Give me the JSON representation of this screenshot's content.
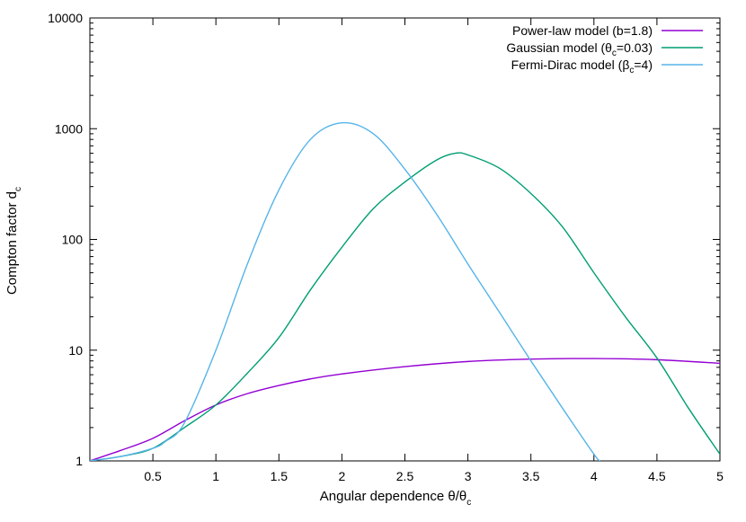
{
  "chart_data": {
    "type": "line",
    "xlabel_main": "Angular dependence  θ/θ",
    "xlabel_sub": "c",
    "ylabel_main": "Compton factor d",
    "ylabel_sub": "c",
    "xlim": [
      0,
      5
    ],
    "ylim": [
      1,
      10000
    ],
    "y_scale": "log",
    "grid": false,
    "legend_position": "top-right",
    "x_ticks": [
      {
        "value": 0.5,
        "label": "0.5"
      },
      {
        "value": 1,
        "label": "1"
      },
      {
        "value": 1.5,
        "label": "1.5"
      },
      {
        "value": 2,
        "label": "2"
      },
      {
        "value": 2.5,
        "label": "2.5"
      },
      {
        "value": 3,
        "label": "3"
      },
      {
        "value": 3.5,
        "label": "3.5"
      },
      {
        "value": 4,
        "label": "4"
      },
      {
        "value": 4.5,
        "label": "4.5"
      },
      {
        "value": 5,
        "label": "5"
      }
    ],
    "y_ticks": [
      {
        "value": 1,
        "label": "1"
      },
      {
        "value": 10,
        "label": "10"
      },
      {
        "value": 100,
        "label": "100"
      },
      {
        "value": 1000,
        "label": "1000"
      },
      {
        "value": 10000,
        "label": "10000"
      }
    ],
    "series": [
      {
        "name": "Power-law model (b=1.8)",
        "legend_parts": [
          {
            "text": "Power-law model (b=1.8)",
            "sub": false
          }
        ],
        "color": "#9400d3",
        "x": [
          0,
          0.25,
          0.5,
          0.75,
          1,
          1.25,
          1.5,
          1.75,
          2,
          2.5,
          3,
          3.5,
          4,
          4.5,
          5
        ],
        "y": [
          1,
          1.25,
          1.6,
          2.3,
          3.2,
          4.05,
          4.8,
          5.5,
          6.1,
          7.1,
          7.9,
          8.3,
          8.4,
          8.2,
          7.6
        ]
      },
      {
        "name": "Gaussian model (θc=0.03)",
        "legend_parts": [
          {
            "text": "Gaussian model (θ",
            "sub": false
          },
          {
            "text": "c",
            "sub": true
          },
          {
            "text": "=0.03)",
            "sub": false
          }
        ],
        "color": "#009e73",
        "x": [
          0,
          0.25,
          0.5,
          0.75,
          1,
          1.25,
          1.5,
          1.75,
          2,
          2.25,
          2.5,
          2.75,
          2.9,
          3,
          3.25,
          3.5,
          3.75,
          4,
          4.25,
          4.5,
          4.75,
          5
        ],
        "y": [
          1,
          1.1,
          1.3,
          2.0,
          3.2,
          6.2,
          13,
          35,
          85,
          190,
          330,
          520,
          600,
          580,
          440,
          260,
          130,
          50,
          20,
          8.5,
          3.0,
          1.15
        ]
      },
      {
        "name": "Fermi-Dirac model (βc=4)",
        "legend_parts": [
          {
            "text": "Fermi-Dirac model (β",
            "sub": false
          },
          {
            "text": "c",
            "sub": true
          },
          {
            "text": "=4)",
            "sub": false
          }
        ],
        "color": "#56b4e9",
        "x": [
          0,
          0.25,
          0.5,
          0.6,
          0.75,
          1,
          1.25,
          1.5,
          1.75,
          2,
          2.25,
          2.5,
          2.75,
          3,
          3.25,
          3.5,
          3.75,
          4,
          4.05
        ],
        "y": [
          1,
          1.1,
          1.3,
          1.5,
          2.2,
          10,
          60,
          280,
          800,
          1130,
          900,
          430,
          170,
          60,
          22,
          8,
          3,
          1.15,
          1
        ]
      }
    ]
  }
}
